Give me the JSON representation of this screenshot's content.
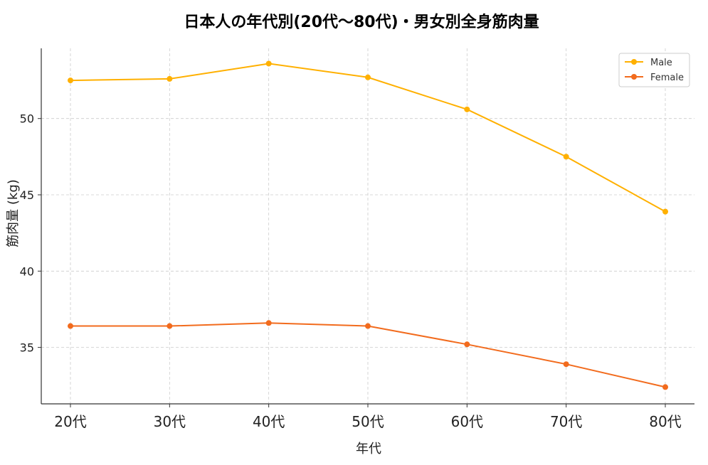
{
  "chart_data": {
    "type": "line",
    "title": "日本人の年代別(20代〜80代)・男女別全身筋肉量",
    "xlabel": "年代",
    "ylabel": "筋肉量 (kg)",
    "categories": [
      "20代",
      "30代",
      "40代",
      "50代",
      "60代",
      "70代",
      "80代"
    ],
    "series": [
      {
        "name": "Male",
        "color": "#FFB000",
        "values": [
          52.5,
          52.6,
          53.6,
          52.7,
          50.6,
          47.5,
          43.9
        ]
      },
      {
        "name": "Female",
        "color": "#F26B1D",
        "values": [
          36.4,
          36.4,
          36.6,
          36.4,
          35.2,
          33.9,
          32.4
        ]
      }
    ],
    "ylim": [
      31.3,
      54.6
    ],
    "yticks": [
      35,
      40,
      45,
      50
    ],
    "grid": true,
    "legend_position": "top-right"
  }
}
